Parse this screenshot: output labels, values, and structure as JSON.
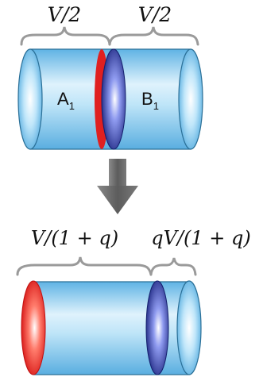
{
  "top_cylinder": {
    "left_volume_label": "V/2",
    "right_volume_label": "V/2",
    "chamber_a": {
      "letter": "A",
      "subscript": "1"
    },
    "chamber_b": {
      "letter": "B",
      "subscript": "1"
    }
  },
  "bottom_cylinder": {
    "left_volume_label": "V/(1 + q)",
    "right_volume_label": "qV/(1 + q)"
  },
  "colors": {
    "tube_fill": "#a9dcf5",
    "tube_stroke": "#2a6f97",
    "piston_blue": "#1f2a8a",
    "piston_red": "#e02020",
    "arrow": "#6b6b6b",
    "brace": "#9a9a9a"
  }
}
